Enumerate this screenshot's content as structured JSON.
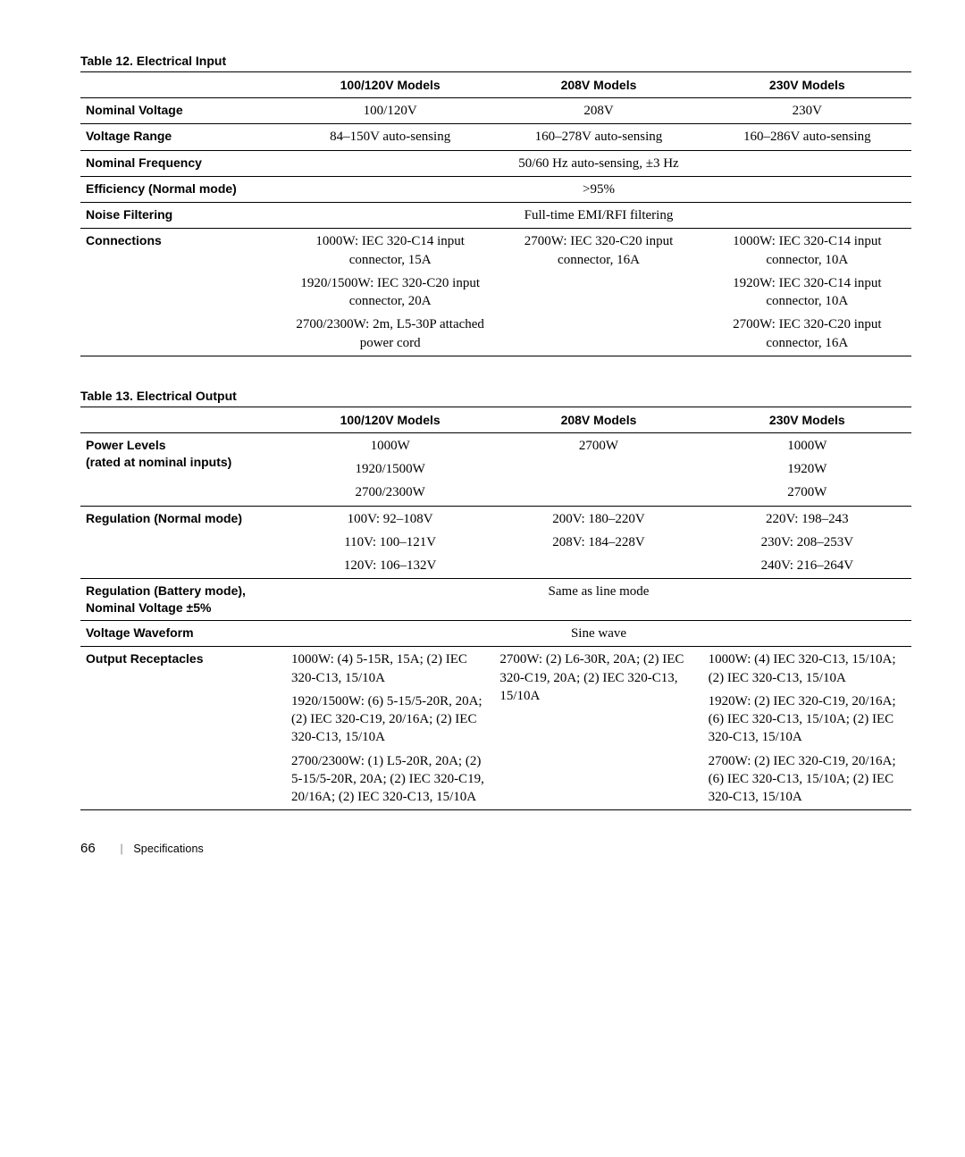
{
  "footer": {
    "page": "66",
    "section": "Specifications"
  },
  "table12": {
    "title": "Table 12. Electrical Input",
    "headers": [
      "100/120V Models",
      "208V Models",
      "230V Models"
    ],
    "rows": [
      {
        "label": "Nominal Voltage",
        "cells": [
          "100/120V",
          "208V",
          "230V"
        ]
      },
      {
        "label": "Voltage Range",
        "cells": [
          "84–150V auto-sensing",
          "160–278V auto-sensing",
          "160–286V auto-sensing"
        ]
      },
      {
        "label": "Nominal Frequency",
        "span": "50/60 Hz auto-sensing, ±3 Hz"
      },
      {
        "label": "Efficiency (Normal mode)",
        "span": ">95%"
      },
      {
        "label": "Noise Filtering",
        "span": "Full-time EMI/RFI filtering"
      },
      {
        "label": "Connections",
        "cells_blocks": [
          [
            "1000W: IEC 320-C14 input connector, 15A",
            "1920/1500W: IEC 320-C20 input connector, 20A",
            "2700/2300W: 2m, L5-30P attached power cord"
          ],
          [
            "2700W: IEC 320-C20 input connector, 16A"
          ],
          [
            "1000W: IEC 320-C14 input connector, 10A",
            "1920W: IEC 320-C14 input connector, 10A",
            "2700W: IEC 320-C20 input connector, 16A"
          ]
        ]
      }
    ]
  },
  "table13": {
    "title": "Table 13. Electrical Output",
    "headers": [
      "100/120V Models",
      "208V Models",
      "230V Models"
    ],
    "rows": [
      {
        "label": "Power Levels\n(rated at nominal inputs)",
        "cells_blocks": [
          [
            "1000W",
            "1920/1500W",
            "2700/2300W"
          ],
          [
            "2700W"
          ],
          [
            "1000W",
            "1920W",
            "2700W"
          ]
        ]
      },
      {
        "label": "Regulation (Normal mode)",
        "cells_blocks": [
          [
            "100V: 92–108V",
            "110V: 100–121V",
            "120V: 106–132V"
          ],
          [
            "200V: 180–220V",
            "208V: 184–228V"
          ],
          [
            "220V: 198–243",
            "230V: 208–253V",
            "240V: 216–264V"
          ]
        ]
      },
      {
        "label": "Regulation (Battery mode),\nNominal Voltage ±5%",
        "span": "Same as line mode"
      },
      {
        "label": "Voltage Waveform",
        "span": "Sine wave"
      },
      {
        "label": "Output Receptacles",
        "left": true,
        "cells_blocks": [
          [
            "1000W: (4) 5-15R, 15A; (2) IEC 320-C13, 15/10A",
            "1920/1500W: (6) 5-15/5-20R, 20A; (2) IEC 320-C19, 20/16A; (2) IEC 320-C13, 15/10A",
            "2700/2300W: (1) L5-20R, 20A; (2) 5-15/5-20R, 20A; (2) IEC 320-C19, 20/16A; (2) IEC 320-C13, 15/10A"
          ],
          [
            "2700W: (2) L6-30R, 20A; (2) IEC 320-C19, 20A; (2) IEC 320-C13, 15/10A"
          ],
          [
            "1000W: (4) IEC 320-C13, 15/10A; (2) IEC 320-C13, 15/10A",
            "1920W: (2) IEC 320-C19, 20/16A; (6) IEC 320-C13, 15/10A; (2) IEC 320-C13, 15/10A",
            "2700W: (2) IEC 320-C19, 20/16A; (6) IEC 320-C13, 15/10A; (2) IEC 320-C13, 15/10A"
          ]
        ]
      }
    ]
  }
}
